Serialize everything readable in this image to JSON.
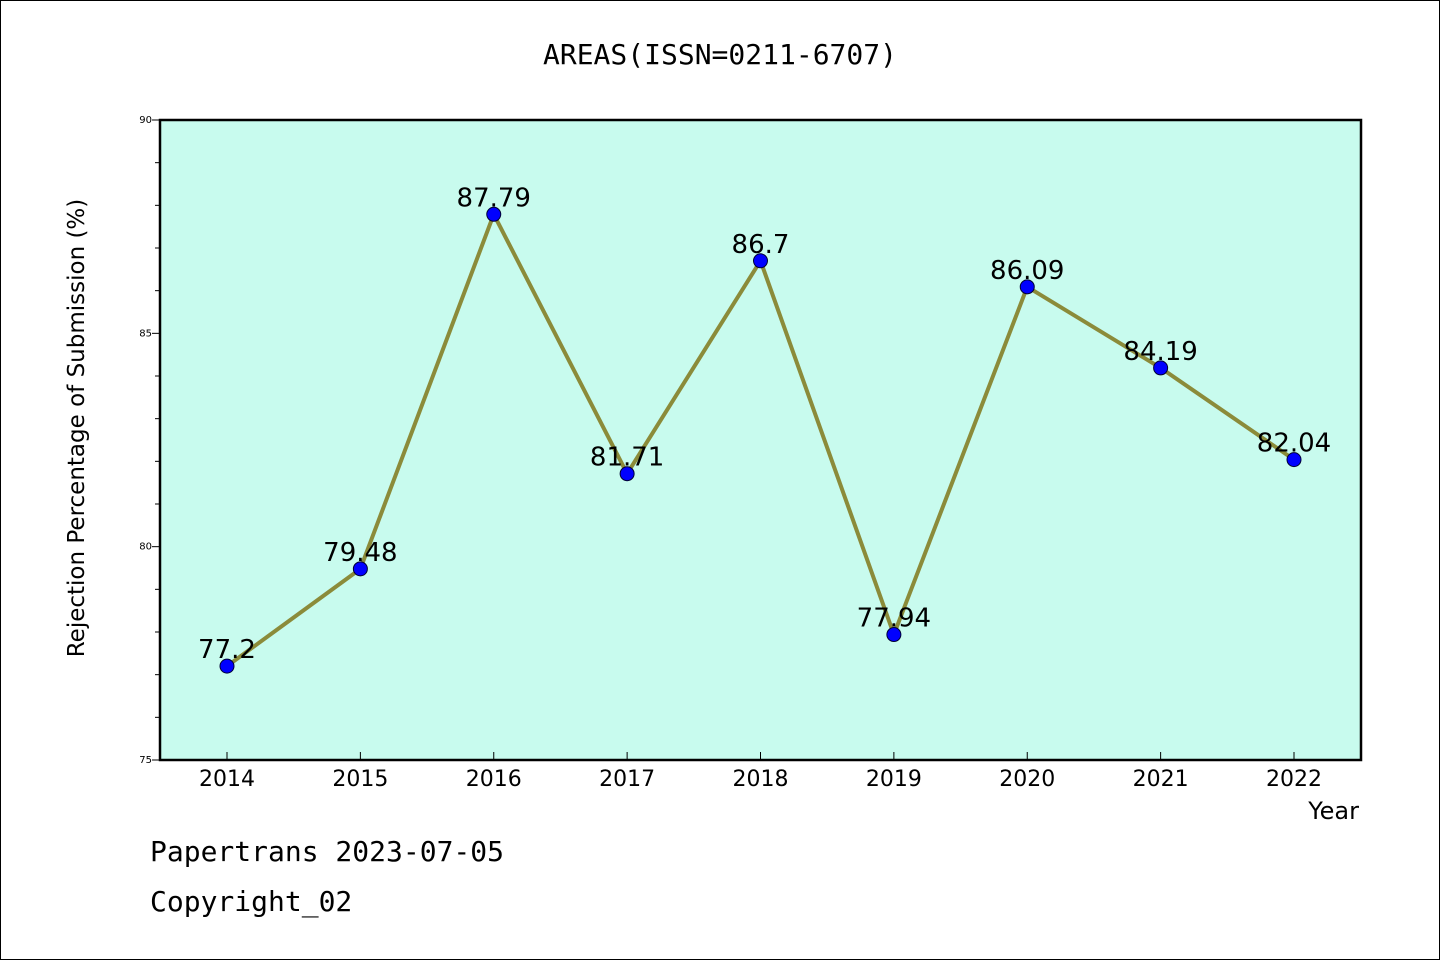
{
  "chart_data": {
    "type": "line",
    "title": "AREAS(ISSN=0211-6707)",
    "xlabel": "Year",
    "ylabel": "Rejection Percentage of Submission (%)",
    "ylim": [
      75,
      90
    ],
    "yticks": [
      75,
      80,
      85,
      90
    ],
    "categories": [
      "2014",
      "2015",
      "2016",
      "2017",
      "2018",
      "2019",
      "2020",
      "2021",
      "2022"
    ],
    "series": [
      {
        "values": [
          77.2,
          79.48,
          87.79,
          81.71,
          86.7,
          77.94,
          86.09,
          84.19,
          82.04
        ],
        "labels": [
          "77.2",
          "79.48",
          "87.79",
          "81.71",
          "86.7",
          "77.94",
          "86.09",
          "84.19",
          "82.04"
        ]
      }
    ],
    "grid": false,
    "colors": {
      "plot_background": "#c8fbee",
      "line": "#8b8b3a",
      "marker": "#0000ff"
    }
  },
  "footer": {
    "line1": "Papertrans 2023-07-05",
    "line2": "Copyright_02"
  }
}
